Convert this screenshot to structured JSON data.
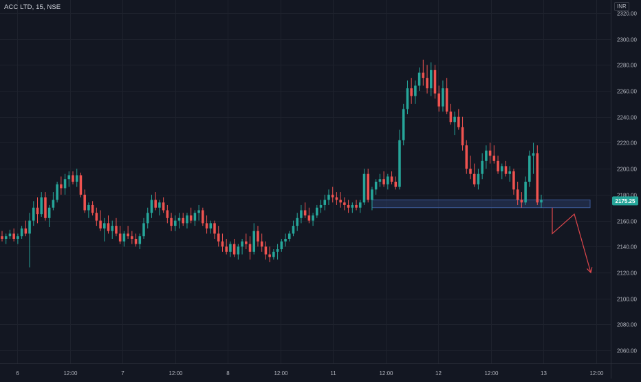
{
  "header": {
    "symbol_label": "ACC LTD, 15, NSE",
    "currency": "INR"
  },
  "colors": {
    "background": "#131722",
    "grid": "#1e222d",
    "up": "#26a69a",
    "down": "#ef5350",
    "axis_text": "#b2b5be",
    "zone_fill": "#2a3a63",
    "zone_edge": "#3d5a99",
    "arrow": "#e0474c"
  },
  "chart_data": {
    "type": "candlestick",
    "title": "ACC LTD, 15, NSE",
    "ylim": [
      2050,
      2330
    ],
    "y_ticks": [
      "2060.00",
      "2080.00",
      "2100.00",
      "2120.00",
      "2140.00",
      "2160.00",
      "2180.00",
      "2200.00",
      "2220.00",
      "2240.00",
      "2260.00",
      "2280.00",
      "2300.00",
      "2320.00"
    ],
    "x_ticks": [
      "6",
      "12:00",
      "7",
      "12:00",
      "8",
      "12:00",
      "11",
      "12:00",
      "12",
      "12:00",
      "13",
      "12:00"
    ],
    "last_price": "2175.25",
    "grid": true,
    "ohlc": [
      [
        2148,
        2152,
        2144,
        2146
      ],
      [
        2146,
        2150,
        2142,
        2148
      ],
      [
        2148,
        2153,
        2146,
        2150
      ],
      [
        2150,
        2154,
        2144,
        2146
      ],
      [
        2146,
        2150,
        2142,
        2148
      ],
      [
        2148,
        2156,
        2146,
        2154
      ],
      [
        2154,
        2160,
        2148,
        2150
      ],
      [
        2150,
        2166,
        2124,
        2160
      ],
      [
        2160,
        2175,
        2156,
        2170
      ],
      [
        2170,
        2178,
        2158,
        2165
      ],
      [
        2165,
        2182,
        2163,
        2178
      ],
      [
        2178,
        2182,
        2160,
        2162
      ],
      [
        2162,
        2172,
        2155,
        2170
      ],
      [
        2170,
        2182,
        2168,
        2176
      ],
      [
        2176,
        2190,
        2174,
        2188
      ],
      [
        2188,
        2194,
        2180,
        2185
      ],
      [
        2185,
        2196,
        2180,
        2192
      ],
      [
        2192,
        2198,
        2186,
        2195
      ],
      [
        2195,
        2198,
        2188,
        2190
      ],
      [
        2190,
        2200,
        2186,
        2195
      ],
      [
        2195,
        2197,
        2178,
        2180
      ],
      [
        2180,
        2184,
        2166,
        2168
      ],
      [
        2168,
        2174,
        2162,
        2172
      ],
      [
        2172,
        2175,
        2164,
        2166
      ],
      [
        2166,
        2170,
        2156,
        2160
      ],
      [
        2160,
        2168,
        2152,
        2154
      ],
      [
        2154,
        2162,
        2144,
        2158
      ],
      [
        2158,
        2164,
        2150,
        2152
      ],
      [
        2152,
        2160,
        2146,
        2156
      ],
      [
        2156,
        2162,
        2148,
        2150
      ],
      [
        2150,
        2156,
        2142,
        2144
      ],
      [
        2144,
        2152,
        2140,
        2150
      ],
      [
        2150,
        2156,
        2146,
        2148
      ],
      [
        2148,
        2152,
        2142,
        2146
      ],
      [
        2146,
        2150,
        2140,
        2142
      ],
      [
        2142,
        2150,
        2138,
        2148
      ],
      [
        2148,
        2162,
        2146,
        2158
      ],
      [
        2158,
        2170,
        2154,
        2166
      ],
      [
        2166,
        2180,
        2162,
        2176
      ],
      [
        2176,
        2182,
        2168,
        2170
      ],
      [
        2170,
        2176,
        2164,
        2174
      ],
      [
        2174,
        2178,
        2166,
        2168
      ],
      [
        2168,
        2172,
        2158,
        2162
      ],
      [
        2162,
        2166,
        2152,
        2156
      ],
      [
        2156,
        2164,
        2152,
        2160
      ],
      [
        2160,
        2166,
        2154,
        2162
      ],
      [
        2162,
        2166,
        2156,
        2158
      ],
      [
        2158,
        2166,
        2154,
        2164
      ],
      [
        2164,
        2170,
        2158,
        2160
      ],
      [
        2160,
        2168,
        2156,
        2166
      ],
      [
        2166,
        2172,
        2160,
        2168
      ],
      [
        2168,
        2170,
        2156,
        2158
      ],
      [
        2158,
        2164,
        2150,
        2154
      ],
      [
        2154,
        2160,
        2150,
        2158
      ],
      [
        2158,
        2160,
        2146,
        2150
      ],
      [
        2150,
        2156,
        2140,
        2144
      ],
      [
        2144,
        2150,
        2136,
        2140
      ],
      [
        2140,
        2146,
        2134,
        2136
      ],
      [
        2136,
        2144,
        2132,
        2142
      ],
      [
        2142,
        2146,
        2132,
        2134
      ],
      [
        2134,
        2142,
        2130,
        2140
      ],
      [
        2140,
        2146,
        2134,
        2144
      ],
      [
        2144,
        2150,
        2138,
        2142
      ],
      [
        2142,
        2148,
        2130,
        2136
      ],
      [
        2136,
        2158,
        2134,
        2152
      ],
      [
        2152,
        2156,
        2140,
        2144
      ],
      [
        2144,
        2150,
        2136,
        2140
      ],
      [
        2140,
        2144,
        2130,
        2134
      ],
      [
        2134,
        2140,
        2128,
        2132
      ],
      [
        2132,
        2138,
        2130,
        2136
      ],
      [
        2136,
        2142,
        2130,
        2138
      ],
      [
        2138,
        2146,
        2136,
        2144
      ],
      [
        2144,
        2150,
        2140,
        2146
      ],
      [
        2146,
        2152,
        2144,
        2150
      ],
      [
        2150,
        2160,
        2148,
        2156
      ],
      [
        2156,
        2166,
        2152,
        2162
      ],
      [
        2162,
        2172,
        2158,
        2168
      ],
      [
        2168,
        2174,
        2162,
        2164
      ],
      [
        2164,
        2170,
        2158,
        2160
      ],
      [
        2160,
        2166,
        2156,
        2164
      ],
      [
        2164,
        2172,
        2162,
        2170
      ],
      [
        2170,
        2176,
        2166,
        2172
      ],
      [
        2172,
        2180,
        2168,
        2176
      ],
      [
        2176,
        2184,
        2172,
        2180
      ],
      [
        2180,
        2186,
        2174,
        2178
      ],
      [
        2178,
        2182,
        2172,
        2176
      ],
      [
        2176,
        2182,
        2170,
        2174
      ],
      [
        2174,
        2178,
        2168,
        2172
      ],
      [
        2172,
        2176,
        2166,
        2170
      ],
      [
        2170,
        2174,
        2166,
        2172
      ],
      [
        2172,
        2176,
        2168,
        2170
      ],
      [
        2170,
        2176,
        2166,
        2174
      ],
      [
        2174,
        2200,
        2172,
        2196
      ],
      [
        2196,
        2200,
        2174,
        2176
      ],
      [
        2176,
        2186,
        2168,
        2184
      ],
      [
        2184,
        2192,
        2180,
        2190
      ],
      [
        2190,
        2196,
        2186,
        2192
      ],
      [
        2192,
        2198,
        2186,
        2188
      ],
      [
        2188,
        2196,
        2184,
        2194
      ],
      [
        2194,
        2198,
        2188,
        2190
      ],
      [
        2190,
        2194,
        2184,
        2186
      ],
      [
        2186,
        2230,
        2184,
        2222
      ],
      [
        2222,
        2250,
        2218,
        2246
      ],
      [
        2246,
        2268,
        2242,
        2262
      ],
      [
        2262,
        2270,
        2250,
        2256
      ],
      [
        2256,
        2268,
        2250,
        2264
      ],
      [
        2264,
        2278,
        2260,
        2274
      ],
      [
        2274,
        2284,
        2264,
        2270
      ],
      [
        2270,
        2280,
        2258,
        2262
      ],
      [
        2262,
        2282,
        2256,
        2276
      ],
      [
        2276,
        2280,
        2254,
        2258
      ],
      [
        2258,
        2264,
        2244,
        2248
      ],
      [
        2248,
        2268,
        2244,
        2262
      ],
      [
        2262,
        2270,
        2242,
        2244
      ],
      [
        2244,
        2250,
        2234,
        2236
      ],
      [
        2236,
        2244,
        2226,
        2240
      ],
      [
        2240,
        2246,
        2230,
        2232
      ],
      [
        2232,
        2240,
        2214,
        2218
      ],
      [
        2218,
        2222,
        2196,
        2200
      ],
      [
        2200,
        2210,
        2192,
        2196
      ],
      [
        2196,
        2204,
        2186,
        2188
      ],
      [
        2188,
        2200,
        2184,
        2196
      ],
      [
        2196,
        2212,
        2192,
        2206
      ],
      [
        2206,
        2218,
        2200,
        2214
      ],
      [
        2214,
        2220,
        2204,
        2210
      ],
      [
        2210,
        2218,
        2204,
        2206
      ],
      [
        2206,
        2210,
        2196,
        2198
      ],
      [
        2198,
        2204,
        2192,
        2202
      ],
      [
        2202,
        2206,
        2194,
        2196
      ],
      [
        2196,
        2202,
        2190,
        2198
      ],
      [
        2198,
        2200,
        2180,
        2184
      ],
      [
        2184,
        2190,
        2172,
        2176
      ],
      [
        2176,
        2182,
        2170,
        2174
      ],
      [
        2174,
        2194,
        2172,
        2190
      ],
      [
        2190,
        2214,
        2186,
        2210
      ],
      [
        2210,
        2220,
        2196,
        2212
      ],
      [
        2212,
        2218,
        2172,
        2174
      ],
      [
        2174,
        2180,
        2170,
        2176
      ]
    ],
    "support_zone": {
      "from": 2170,
      "to": 2176
    },
    "projection_path": [
      [
        2173,
        2150
      ],
      [
        2170,
        2165
      ],
      [
        2165,
        2120
      ]
    ]
  }
}
